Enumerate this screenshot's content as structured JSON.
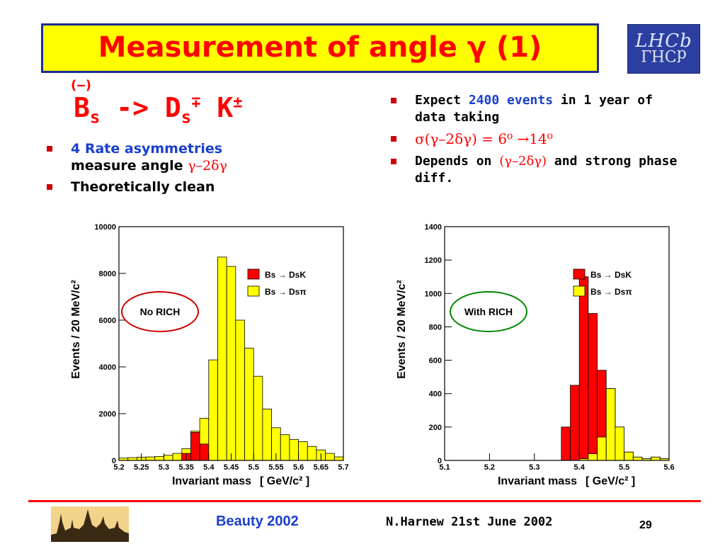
{
  "title": "Measurement of angle γ (1)",
  "logo": "LHCb",
  "decay": {
    "b": "B",
    "s": "s",
    "arrow": " -> D",
    "s2": "s",
    "charge": "∓",
    "k": " K",
    "kcharge": "±",
    "paren": "(‒)"
  },
  "left_bullets": [
    {
      "blue": "4 Rate asymmetries",
      "line2": "measure angle ",
      "sym": "γ–2δγ"
    },
    {
      "text": "Theoretically clean"
    }
  ],
  "right_bullets": [
    {
      "pre": "Expect ",
      "blue": "2400 events",
      "post": " in 1 year of data taking"
    },
    {
      "sym": "σ(γ–2δγ) = 6⁰ →14⁰"
    },
    {
      "pre": "Depends on ",
      "sym": "(γ–2δγ)",
      "post": " and strong phase diff."
    }
  ],
  "colors": {
    "signal": "#ff0000",
    "background": "#ffff00",
    "no_rich_ring": "#cc0000",
    "with_rich_ring": "#008800"
  },
  "chart_data": [
    {
      "type": "bar",
      "title": "",
      "label": "No RICH",
      "xlabel": "Invariant mass",
      "xunit": "[ GeV/c² ]",
      "ylabel": "Events  /  20 MeV/c²",
      "xlim": [
        5.2,
        5.7
      ],
      "ylim": [
        0,
        10000
      ],
      "xticks": [
        "5.2",
        "5.25",
        "5.3",
        "5.35",
        "5.4",
        "5.45",
        "5.5",
        "5.55",
        "5.6",
        "5.65",
        "5.7"
      ],
      "yticks": [
        "0",
        "2000",
        "4000",
        "6000",
        "8000",
        "10000"
      ],
      "bin_edges": [
        5.2,
        5.22,
        5.24,
        5.26,
        5.28,
        5.3,
        5.32,
        5.34,
        5.36,
        5.38,
        5.4,
        5.42,
        5.44,
        5.46,
        5.48,
        5.5,
        5.52,
        5.54,
        5.56,
        5.58,
        5.6,
        5.62,
        5.64,
        5.66,
        5.68,
        5.7
      ],
      "series": [
        {
          "name": "Bs → DsK",
          "stacked": "bottom",
          "values": [
            0,
            0,
            0,
            0,
            0,
            0,
            0,
            300,
            1200,
            700,
            0,
            0,
            0,
            0,
            0,
            0,
            0,
            0,
            0,
            0,
            0,
            0,
            0,
            0,
            0
          ]
        },
        {
          "name": "Bs → Dsπ",
          "stacked": "total",
          "values": [
            100,
            120,
            140,
            150,
            170,
            220,
            300,
            500,
            1250,
            1800,
            4300,
            8700,
            8300,
            6000,
            4800,
            3600,
            2200,
            1400,
            1100,
            900,
            800,
            600,
            450,
            300,
            150
          ]
        }
      ],
      "legend": [
        "Bs → DsK",
        "Bs → Dsπ"
      ]
    },
    {
      "type": "bar",
      "title": "",
      "label": "With RICH",
      "xlabel": "Invariant mass",
      "xunit": "[ GeV/c² ]",
      "ylabel": "Events  /  20 MeV/c²",
      "xlim": [
        5.1,
        5.6
      ],
      "ylim": [
        0,
        1400
      ],
      "xticks": [
        "5.1",
        "5.2",
        "5.3",
        "5.4",
        "5.5",
        "5.6"
      ],
      "yticks": [
        "0",
        "200",
        "400",
        "600",
        "800",
        "1000",
        "1200",
        "1400"
      ],
      "bin_edges": [
        5.1,
        5.12,
        5.14,
        5.16,
        5.18,
        5.2,
        5.22,
        5.24,
        5.26,
        5.28,
        5.3,
        5.32,
        5.34,
        5.36,
        5.38,
        5.4,
        5.42,
        5.44,
        5.46,
        5.48,
        5.5,
        5.52,
        5.54,
        5.56,
        5.58,
        5.6
      ],
      "series": [
        {
          "name": "Bs → DsK",
          "stacked": "total",
          "values": [
            0,
            0,
            0,
            0,
            0,
            0,
            0,
            0,
            0,
            0,
            0,
            0,
            0,
            200,
            450,
            1100,
            880,
            540,
            430,
            200,
            50,
            20,
            10,
            20,
            10
          ]
        },
        {
          "name": "Bs → Dsπ",
          "stacked": "bottom",
          "values": [
            0,
            0,
            0,
            0,
            0,
            0,
            0,
            0,
            0,
            0,
            0,
            0,
            0,
            0,
            0,
            10,
            40,
            140,
            430,
            200,
            50,
            20,
            10,
            20,
            10
          ]
        }
      ],
      "legend": [
        "Bs → DsK",
        "Bs → Dsπ"
      ]
    }
  ],
  "footer": {
    "left": "Beauty 2002",
    "mid": "N.Harnew  21st June 2002",
    "page": "29"
  }
}
